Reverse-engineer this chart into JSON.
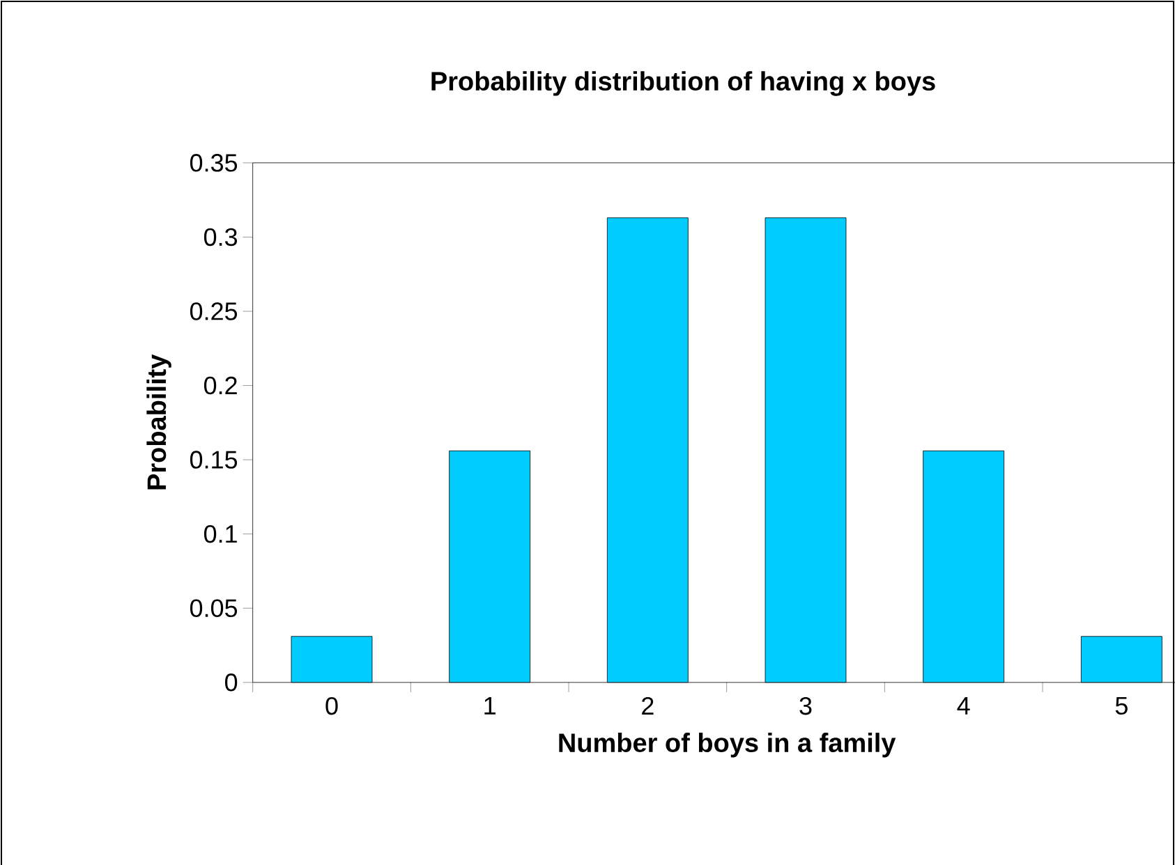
{
  "chart_data": {
    "type": "bar",
    "title": "Probability distribution of having x boys",
    "xlabel": "Number of boys in a family",
    "ylabel": "Probability",
    "categories": [
      "0",
      "1",
      "2",
      "3",
      "4",
      "5"
    ],
    "values": [
      0.031,
      0.156,
      0.313,
      0.313,
      0.156,
      0.031
    ],
    "color": "#00ccff",
    "ylim": [
      0,
      0.35
    ],
    "yticks": [
      0,
      0.05,
      0.1,
      0.15,
      0.2,
      0.25,
      0.3,
      0.35
    ]
  }
}
